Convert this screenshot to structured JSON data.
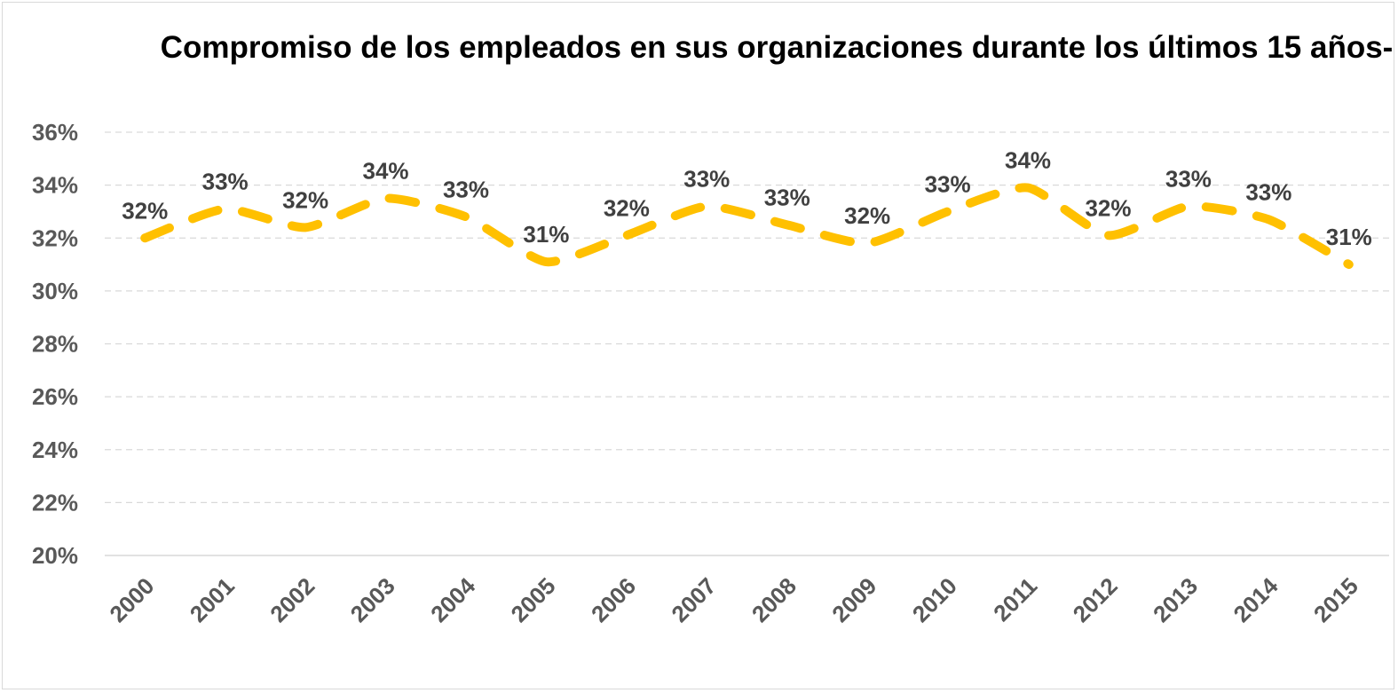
{
  "chart_data": {
    "type": "line",
    "title": "Compromiso de los empleados en sus organizaciones durante los últimos 15 años-",
    "xlabel": "",
    "ylabel": "",
    "categories": [
      "2000",
      "2001",
      "2002",
      "2003",
      "2004",
      "2005",
      "2006",
      "2007",
      "2008",
      "2009",
      "2010",
      "2011",
      "2012",
      "2013",
      "2014",
      "2015"
    ],
    "values": [
      32,
      33.1,
      32.4,
      33.5,
      32.8,
      31.1,
      32.1,
      33.2,
      32.5,
      31.8,
      33.0,
      33.9,
      32.1,
      33.2,
      32.7,
      31.0
    ],
    "data_labels": [
      "32%",
      "33%",
      "32%",
      "34%",
      "33%",
      "31%",
      "32%",
      "33%",
      "33%",
      "32%",
      "33%",
      "34%",
      "32%",
      "33%",
      "33%",
      "31%"
    ],
    "ylim": [
      20,
      36
    ],
    "yticks": [
      20,
      22,
      24,
      26,
      28,
      30,
      32,
      34,
      36
    ],
    "ytick_labels": [
      "20%",
      "22%",
      "24%",
      "26%",
      "28%",
      "30%",
      "32%",
      "34%",
      "36%"
    ],
    "y_format": "percent",
    "grid": true,
    "line_style": "dashed",
    "line_color": "#FFC000",
    "gridline_color": "#d9d9d9",
    "legend": "none"
  }
}
